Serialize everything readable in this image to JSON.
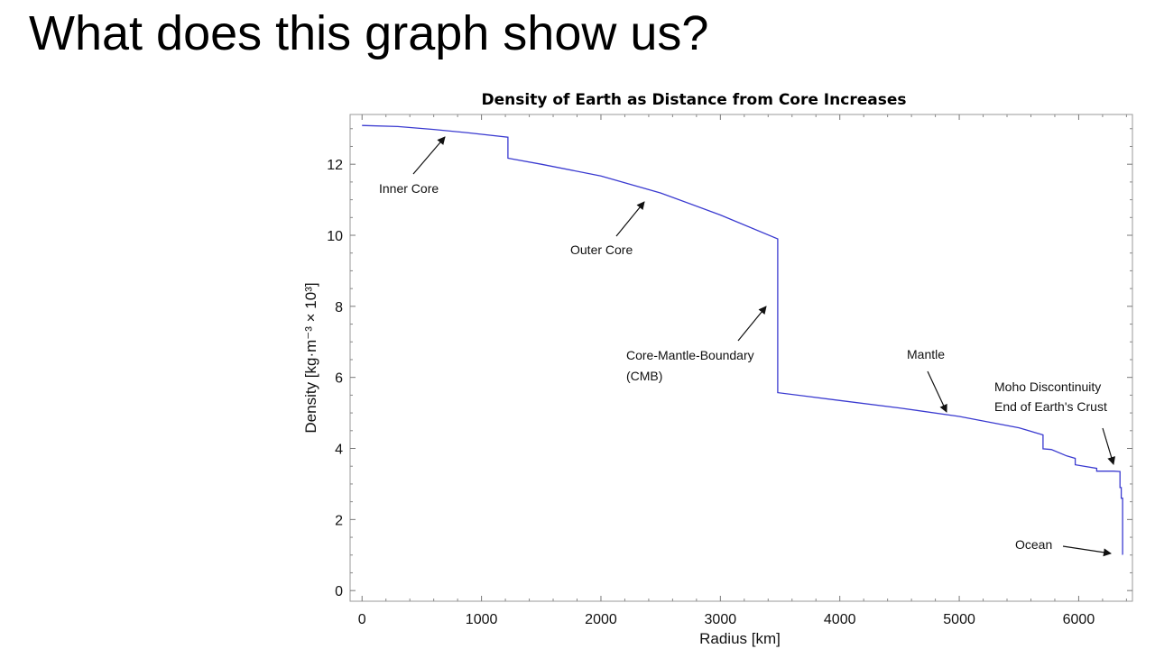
{
  "slide": {
    "title": "What does this graph show us?"
  },
  "chart_data": {
    "type": "line",
    "title": "Density of Earth as Distance from Core Increases",
    "xlabel": "Radius [km]",
    "ylabel": "Density [kg·m⁻³ × 10³]",
    "xlim": [
      -100,
      6450
    ],
    "ylim": [
      -0.3,
      13.4
    ],
    "xticks": [
      0,
      1000,
      2000,
      3000,
      4000,
      5000,
      6000
    ],
    "yticks": [
      0,
      2,
      4,
      6,
      8,
      10,
      12
    ],
    "grid": false,
    "line_color": "#3a3ad0",
    "series": [
      {
        "x": [
          0,
          300,
          600,
          900,
          1221,
          1221,
          1500,
          2000,
          2500,
          3000,
          3480,
          3480,
          4000,
          4500,
          5000,
          5500,
          5701,
          5701,
          5771,
          5900,
          5971,
          5971,
          6151,
          6151,
          6291,
          6346,
          6346,
          6356,
          6356,
          6368,
          6368,
          6371
        ],
        "y": [
          13.09,
          13.06,
          12.98,
          12.88,
          12.76,
          12.17,
          12.0,
          11.67,
          11.19,
          10.57,
          9.9,
          5.57,
          5.35,
          5.14,
          4.9,
          4.58,
          4.38,
          3.99,
          3.97,
          3.79,
          3.72,
          3.54,
          3.44,
          3.36,
          3.36,
          3.35,
          2.9,
          2.9,
          2.6,
          2.6,
          1.02,
          1.02
        ]
      }
    ],
    "annotations": [
      {
        "text": "Inner Core",
        "x": 655,
        "y": 12.8
      },
      {
        "text": "Outer Core",
        "x": 2363,
        "y": 11.0
      },
      {
        "text": "Core-Mantle-Boundary",
        "x": 3360,
        "y": 7.95
      },
      {
        "text": "(CMB)",
        "x": 3360,
        "y": 7.95
      },
      {
        "text": "Mantle",
        "x": 4930,
        "y": 4.96
      },
      {
        "text": "Moho Discontinuity",
        "x": 6330,
        "y": 3.45
      },
      {
        "text": "End of Earth's Crust",
        "x": 6330,
        "y": 3.45
      },
      {
        "text": "Ocean",
        "x": 6350,
        "y": 1.0
      }
    ]
  }
}
